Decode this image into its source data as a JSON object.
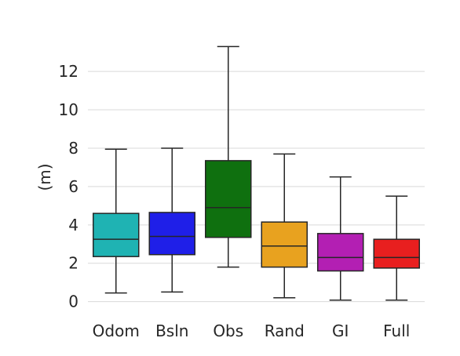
{
  "chart_data": {
    "type": "box",
    "title": "",
    "xlabel": "",
    "ylabel": "(m)",
    "ylim": [
      -0.3,
      13.6
    ],
    "yticks": [
      0,
      2,
      4,
      6,
      8,
      10,
      12
    ],
    "grid": "horizontal",
    "categories": [
      "Odom",
      "Bsln",
      "Obs",
      "Rand",
      "GI",
      "Full"
    ],
    "colors": [
      "#1fb3b3",
      "#1f1fe8",
      "#0f700f",
      "#e8a21f",
      "#b31fb3",
      "#e81f1f"
    ],
    "boxes": [
      {
        "category": "Odom",
        "whisker_low": 0.45,
        "q1": 2.35,
        "median": 3.25,
        "q3": 4.6,
        "whisker_high": 7.95
      },
      {
        "category": "Bsln",
        "whisker_low": 0.5,
        "q1": 2.45,
        "median": 3.4,
        "q3": 4.65,
        "whisker_high": 8.0
      },
      {
        "category": "Obs",
        "whisker_low": 1.8,
        "q1": 3.35,
        "median": 4.9,
        "q3": 7.35,
        "whisker_high": 13.3
      },
      {
        "category": "Rand",
        "whisker_low": 0.2,
        "q1": 1.8,
        "median": 2.9,
        "q3": 4.15,
        "whisker_high": 7.7
      },
      {
        "category": "GI",
        "whisker_low": 0.08,
        "q1": 1.6,
        "median": 2.3,
        "q3": 3.55,
        "whisker_high": 6.5
      },
      {
        "category": "Full",
        "whisker_low": 0.08,
        "q1": 1.75,
        "median": 2.3,
        "q3": 3.25,
        "whisker_high": 5.5
      }
    ]
  }
}
